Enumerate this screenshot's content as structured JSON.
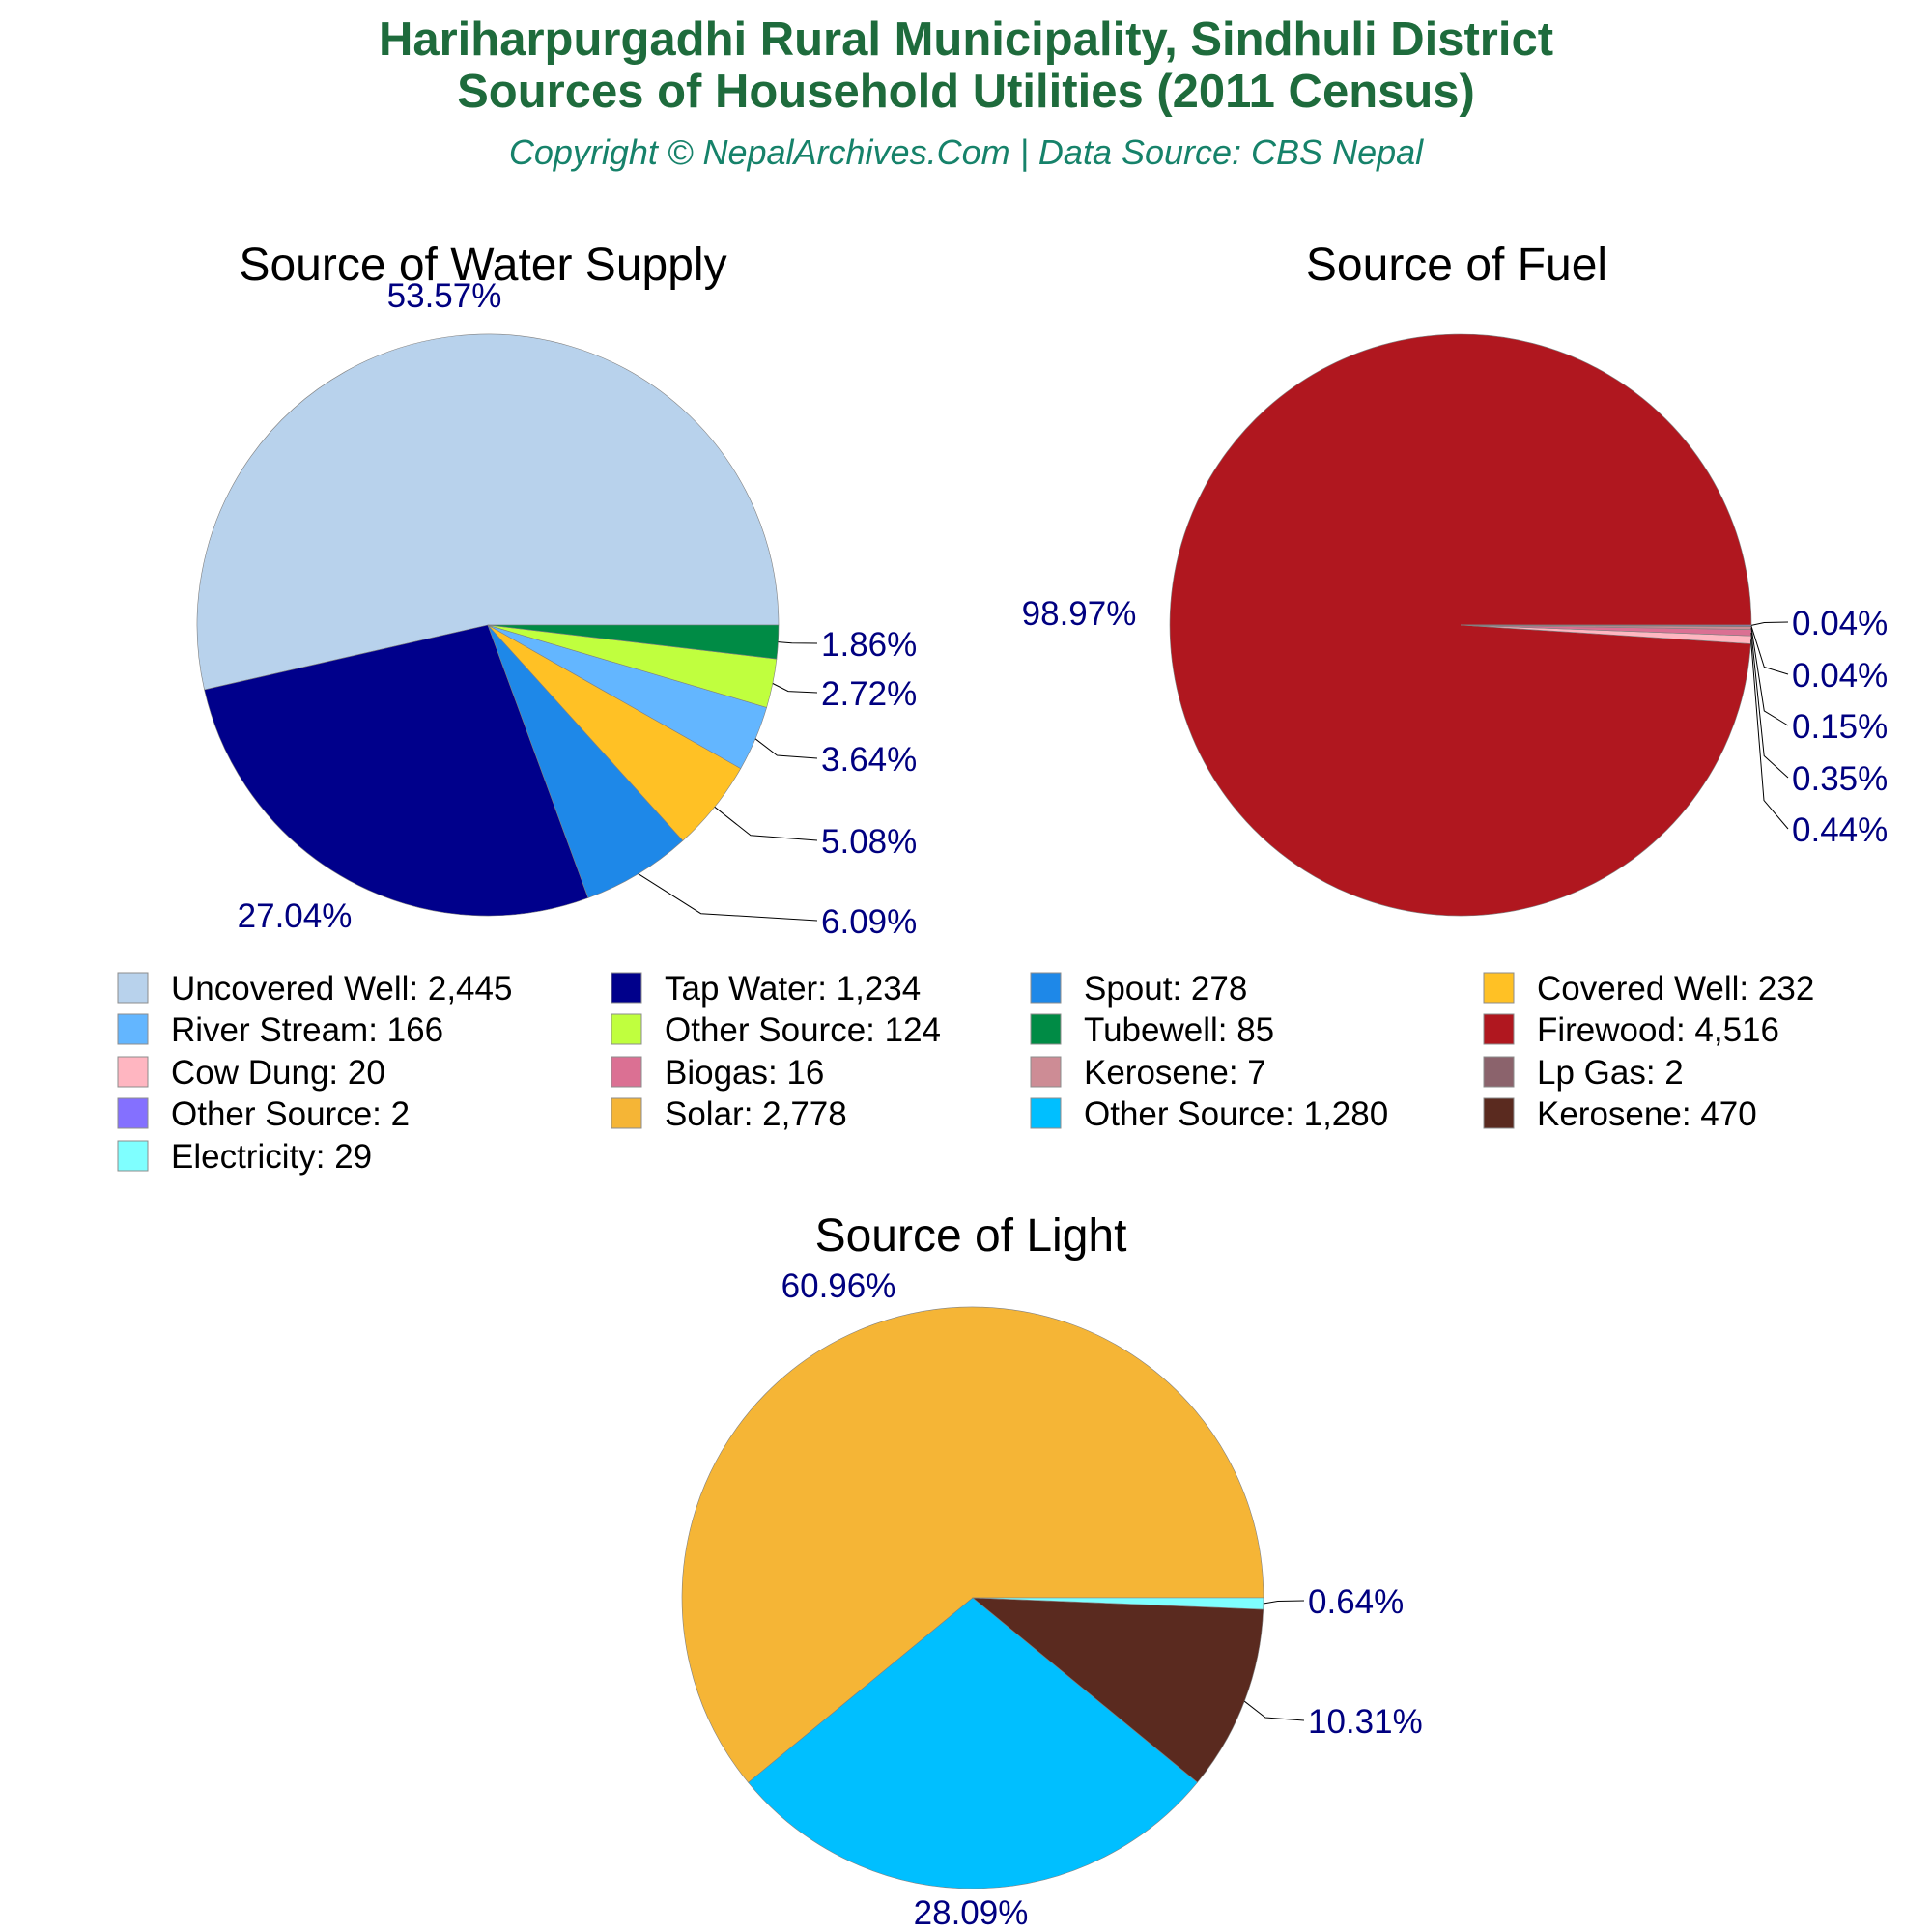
{
  "header": {
    "title_line1": "Hariharpurgadhi Rural Municipality, Sindhuli District",
    "title_line2": "Sources of Household Utilities (2011 Census)",
    "credit": "Copyright © NepalArchives.Com | Data Source: CBS Nepal"
  },
  "chart_data": [
    {
      "type": "pie",
      "title": "Source of Water Supply",
      "slices": [
        {
          "label": "Uncovered Well",
          "value": 2445,
          "percent_label": "53.57%",
          "color": "#b8d2ec"
        },
        {
          "label": "Tap Water",
          "value": 1234,
          "percent_label": "27.04%",
          "color": "#00008b"
        },
        {
          "label": "Spout",
          "value": 278,
          "percent_label": "6.09%",
          "color": "#1e88e8"
        },
        {
          "label": "Covered Well",
          "value": 232,
          "percent_label": "5.08%",
          "color": "#ffc125"
        },
        {
          "label": "River Stream",
          "value": 166,
          "percent_label": "3.64%",
          "color": "#63b6ff"
        },
        {
          "label": "Other Source",
          "value": 124,
          "percent_label": "2.72%",
          "color": "#c0ff3e"
        },
        {
          "label": "Tubewell",
          "value": 85,
          "percent_label": "1.86%",
          "color": "#008b45"
        }
      ]
    },
    {
      "type": "pie",
      "title": "Source of Fuel",
      "slices": [
        {
          "label": "Firewood",
          "value": 4516,
          "percent_label": "98.97%",
          "color": "#b0171f"
        },
        {
          "label": "Cow Dung",
          "value": 20,
          "percent_label": "0.44%",
          "color": "#ffb6c1"
        },
        {
          "label": "Biogas",
          "value": 16,
          "percent_label": "0.35%",
          "color": "#db7093"
        },
        {
          "label": "Kerosene",
          "value": 7,
          "percent_label": "0.15%",
          "color": "#cd8c95"
        },
        {
          "label": "Lp Gas",
          "value": 2,
          "percent_label": "0.04%",
          "color": "#8b636c"
        },
        {
          "label": "Other Source",
          "value": 2,
          "percent_label": "0.04%",
          "color": "#8470ff"
        }
      ]
    },
    {
      "type": "pie",
      "title": "Source of Light",
      "slices": [
        {
          "label": "Solar",
          "value": 2778,
          "percent_label": "60.96%",
          "color": "#f5b536"
        },
        {
          "label": "Other Source",
          "value": 1280,
          "percent_label": "28.09%",
          "color": "#00bfff"
        },
        {
          "label": "Kerosene",
          "value": 470,
          "percent_label": "10.31%",
          "color": "#5a2a1f"
        },
        {
          "label": "Electricity",
          "value": 29,
          "percent_label": "0.64%",
          "color": "#7fffff"
        }
      ]
    }
  ],
  "legend": [
    {
      "text": "Uncovered Well: 2,445",
      "color": "#b8d2ec"
    },
    {
      "text": "Tap Water: 1,234",
      "color": "#00008b"
    },
    {
      "text": "Spout: 278",
      "color": "#1e88e8"
    },
    {
      "text": "Covered Well: 232",
      "color": "#ffc125"
    },
    {
      "text": "River Stream: 166",
      "color": "#63b6ff"
    },
    {
      "text": "Other Source: 124",
      "color": "#c0ff3e"
    },
    {
      "text": "Tubewell: 85",
      "color": "#008b45"
    },
    {
      "text": "Firewood: 4,516",
      "color": "#b0171f"
    },
    {
      "text": "Cow Dung: 20",
      "color": "#ffb6c1"
    },
    {
      "text": "Biogas: 16",
      "color": "#db7093"
    },
    {
      "text": "Kerosene: 7",
      "color": "#cd8c95"
    },
    {
      "text": "Lp Gas: 2",
      "color": "#8b636c"
    },
    {
      "text": "Other Source: 2",
      "color": "#8470ff"
    },
    {
      "text": "Solar: 2,778",
      "color": "#f5b536"
    },
    {
      "text": "Other Source: 1,280",
      "color": "#00bfff"
    },
    {
      "text": "Kerosene: 470",
      "color": "#5a2a1f"
    },
    {
      "text": "Electricity: 29",
      "color": "#7fffff"
    }
  ]
}
